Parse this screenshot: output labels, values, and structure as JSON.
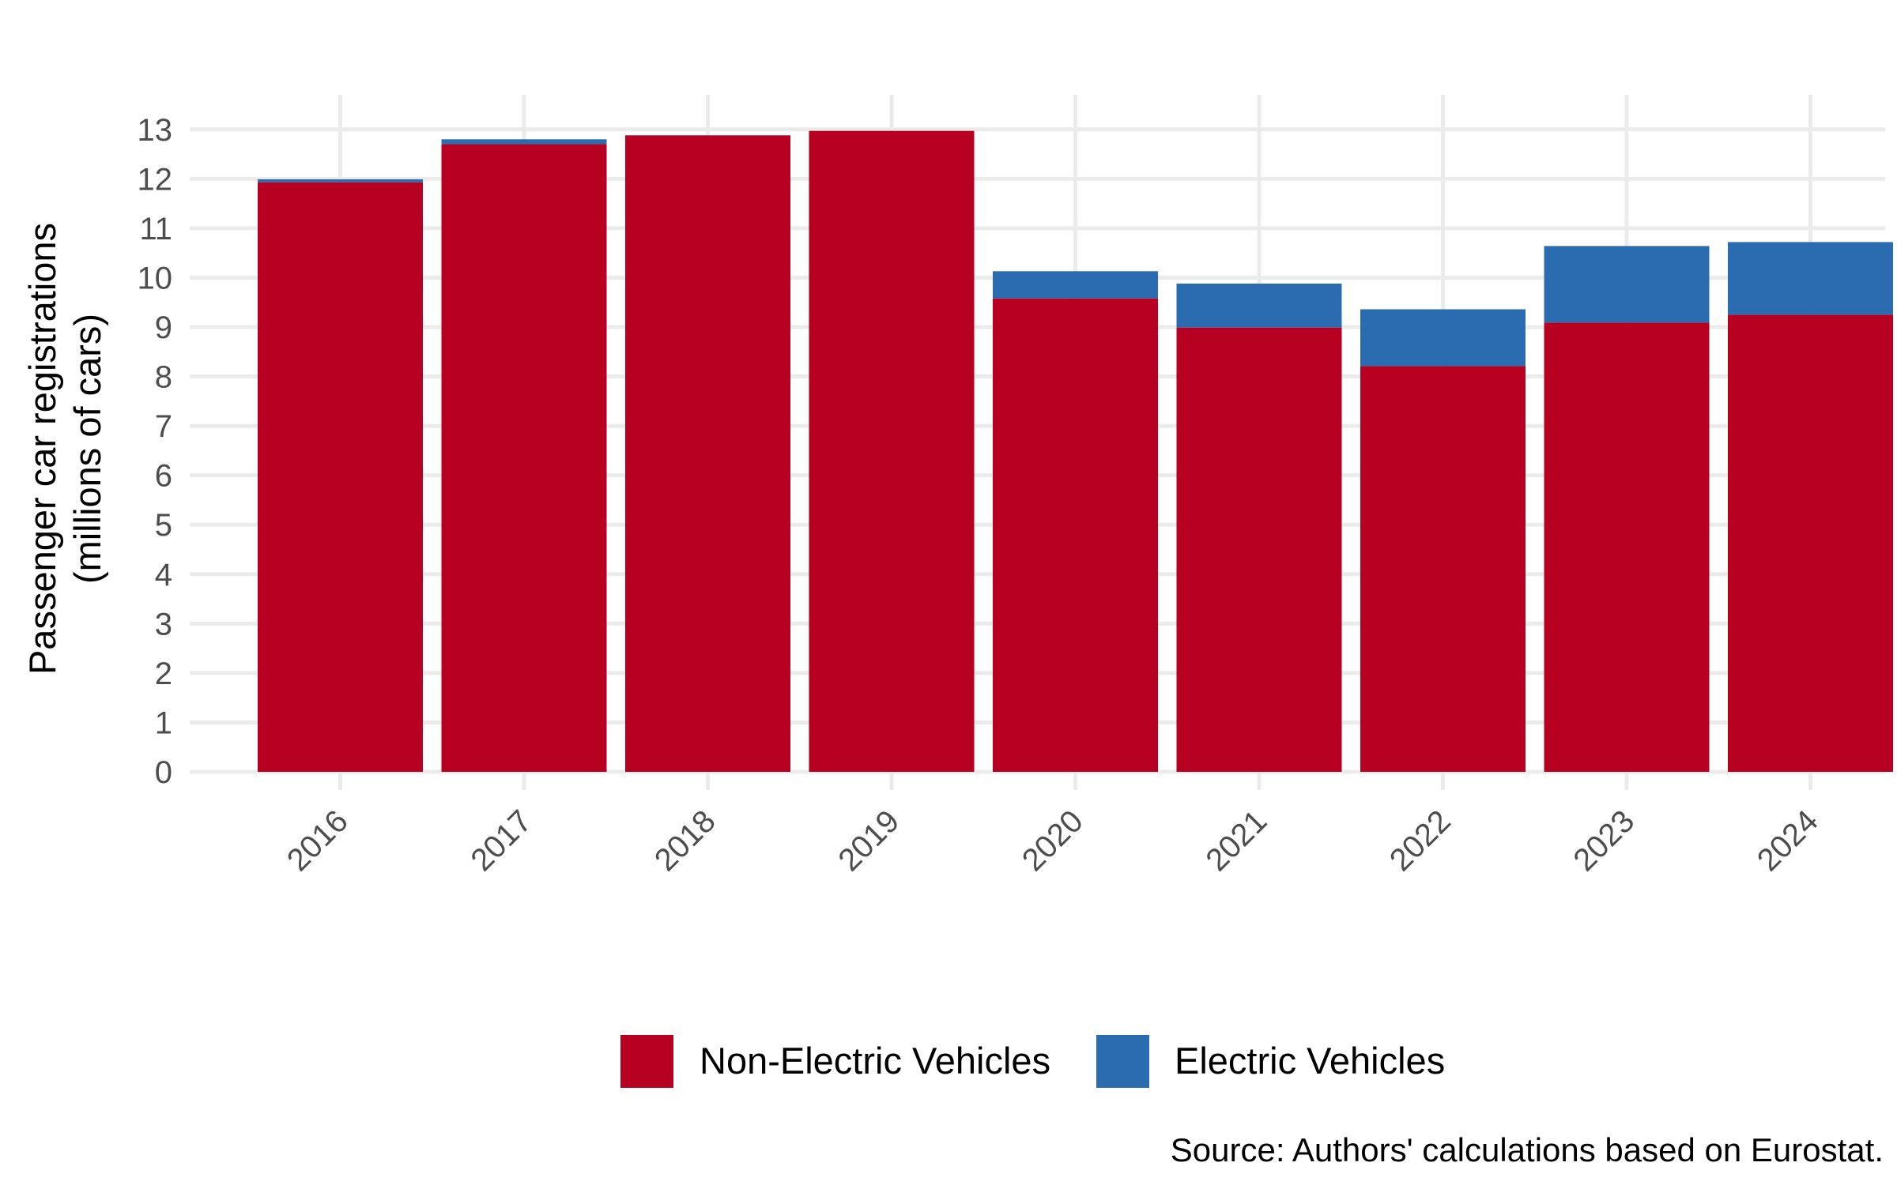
{
  "chart_data": {
    "type": "bar",
    "stacked": true,
    "categories": [
      "2016",
      "2017",
      "2018",
      "2019",
      "2020",
      "2021",
      "2022",
      "2023",
      "2024"
    ],
    "series": [
      {
        "name": "Non-Electric Vehicles",
        "color": "#b70022",
        "values": [
          11.93,
          12.7,
          12.88,
          12.97,
          9.58,
          8.99,
          8.21,
          9.09,
          9.25
        ]
      },
      {
        "name": "Electric Vehicles",
        "color": "#2b6cb0",
        "values": [
          0.06,
          0.1,
          0.0,
          0.0,
          0.55,
          0.89,
          1.15,
          1.55,
          1.47
        ]
      }
    ],
    "ylabel_line1": "Passenger car registrations",
    "ylabel_line2": "(millions of cars)",
    "yticks": [
      "0",
      "1",
      "2",
      "3",
      "4",
      "5",
      "6",
      "7",
      "8",
      "9",
      "10",
      "11",
      "12",
      "13"
    ],
    "ylim": [
      0,
      13.7
    ],
    "grid": true,
    "legend_position": "bottom"
  },
  "source_note": "Source: Authors' calculations based on Eurostat."
}
